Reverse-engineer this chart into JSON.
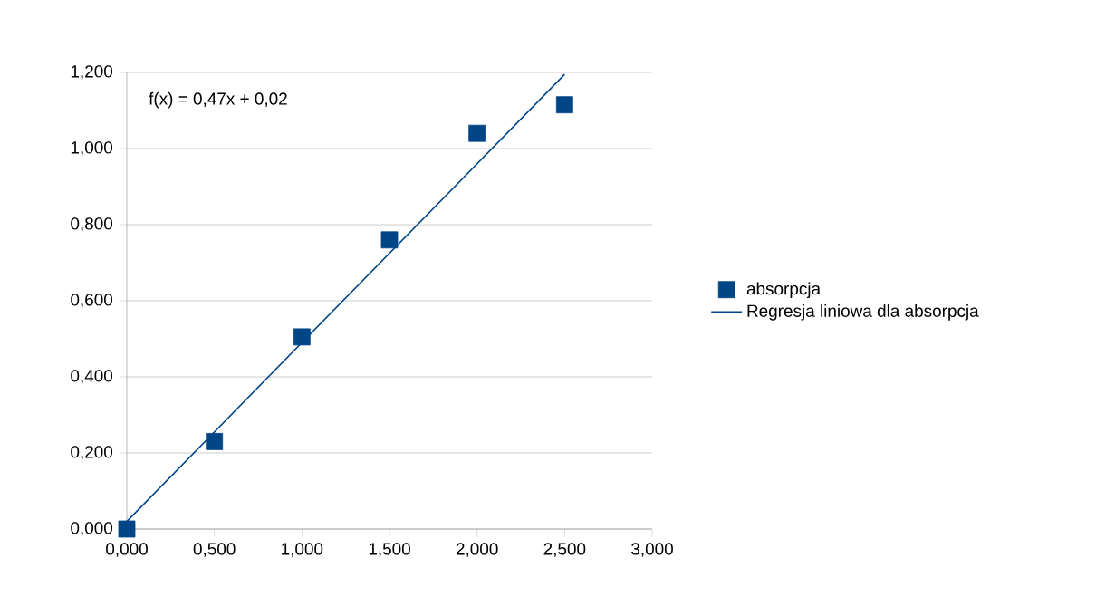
{
  "chart_data": {
    "type": "scatter",
    "xlim": [
      0,
      3
    ],
    "ylim": [
      0,
      1.2
    ],
    "xticks": [
      {
        "value": 0,
        "label": "0,000"
      },
      {
        "value": 0.5,
        "label": "0,500"
      },
      {
        "value": 1,
        "label": "1,000"
      },
      {
        "value": 1.5,
        "label": "1,500"
      },
      {
        "value": 2,
        "label": "2,000"
      },
      {
        "value": 2.5,
        "label": "2,500"
      },
      {
        "value": 3,
        "label": "3,000"
      }
    ],
    "yticks": [
      {
        "value": 0,
        "label": "0,000"
      },
      {
        "value": 0.2,
        "label": "0,200"
      },
      {
        "value": 0.4,
        "label": "0,400"
      },
      {
        "value": 0.6,
        "label": "0,600"
      },
      {
        "value": 0.8,
        "label": "0,800"
      },
      {
        "value": 1,
        "label": "1,000"
      },
      {
        "value": 1.2,
        "label": "1,200"
      }
    ],
    "grid": "y",
    "legend": "right",
    "annotations": [
      "f(x) = 0,47x + 0,02"
    ],
    "series": [
      {
        "name": "absorpcja",
        "marker": "square",
        "color": "#004586",
        "x": [
          0,
          0.5,
          1,
          1.5,
          2,
          2.5
        ],
        "values": [
          0,
          0.23,
          0.505,
          0.76,
          1.04,
          1.115
        ]
      },
      {
        "name": "Regresja liniowa dla absorpcja",
        "type": "line",
        "marker": "none",
        "line_style": "solid",
        "color": "#004586",
        "x": [
          0,
          2.5
        ],
        "values": [
          0.02,
          1.195
        ]
      }
    ]
  }
}
